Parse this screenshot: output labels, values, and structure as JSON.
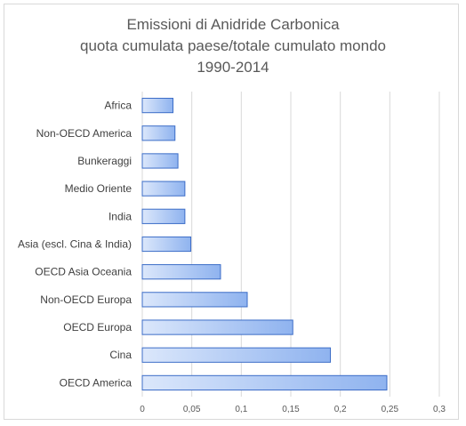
{
  "chart_data": {
    "type": "bar",
    "orientation": "horizontal",
    "title_lines": [
      "Emissioni di Anidride Carbonica",
      "quota cumulata paese/totale cumulato mondo",
      "1990-2014"
    ],
    "categories": [
      "Africa",
      "Non-OECD America",
      "Bunkeraggi",
      "Medio Oriente",
      "India",
      "Asia (escl. Cina & India)",
      "OECD Asia Oceania",
      "Non-OECD Europa",
      "OECD Europa",
      "Cina",
      "OECD America"
    ],
    "values": [
      0.031,
      0.033,
      0.036,
      0.043,
      0.043,
      0.049,
      0.079,
      0.106,
      0.152,
      0.19,
      0.247
    ],
    "xlim": [
      0,
      0.3
    ],
    "xticks": [
      {
        "value": 0,
        "label": "0"
      },
      {
        "value": 0.05,
        "label": "0,05"
      },
      {
        "value": 0.1,
        "label": "0,1"
      },
      {
        "value": 0.15,
        "label": "0,15"
      },
      {
        "value": 0.2,
        "label": "0,2"
      },
      {
        "value": 0.25,
        "label": "0,25"
      },
      {
        "value": 0.3,
        "label": "0,3"
      }
    ],
    "grid": "vertical",
    "legend": "none",
    "colors": {
      "bar_fill_light": "#dbe7fb",
      "bar_fill_dark": "#8fb3ef",
      "bar_stroke": "#3c6dc7",
      "grid": "#d9d9d9"
    }
  }
}
